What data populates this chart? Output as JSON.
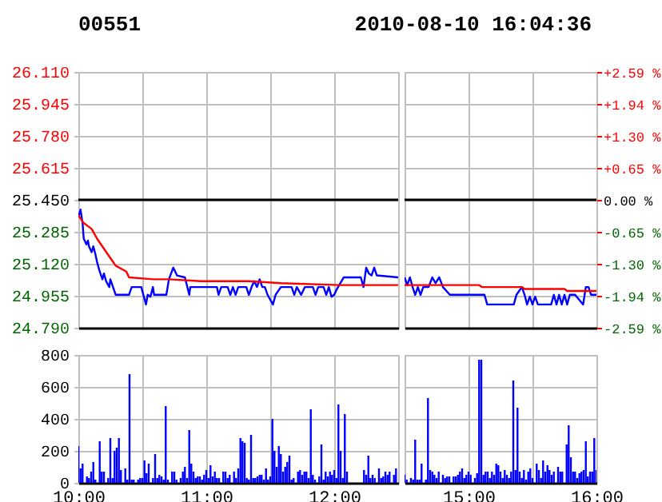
{
  "chart_data": [
    {
      "type": "line",
      "title": "00551",
      "xlim": [
        10,
        12.5
      ],
      "xticks": [
        {
          "value": 10,
          "label": null
        },
        {
          "value": 10.5,
          "label": null
        },
        {
          "value": 11,
          "label": null
        },
        {
          "value": 11.5,
          "label": null
        },
        {
          "value": 12,
          "label": null
        },
        {
          "value": 12.5,
          "label": null
        }
      ],
      "tick_labels": "y",
      "ylim": [
        24.79,
        26.11
      ],
      "yticks": [
        {
          "value": 24.79,
          "label": "24.790"
        },
        {
          "value": 24.955,
          "label": "24.955"
        },
        {
          "value": 25.12,
          "label": "25.120"
        },
        {
          "value": 25.285,
          "label": "25.285"
        },
        {
          "value": 25.45,
          "label": "25.450"
        },
        {
          "value": 25.615,
          "label": "25.615"
        },
        {
          "value": 25.78,
          "label": "25.780"
        },
        {
          "value": 25.945,
          "label": "25.945"
        },
        {
          "value": 26.11,
          "label": "26.110"
        }
      ],
      "grid": true,
      "ref_lines": [
        {
          "axis": "y",
          "value": 25.45,
          "color": "#000000"
        }
      ],
      "series": [
        {
          "color": "#0000ff",
          "x": [
            10,
            10.017,
            10.033,
            10.042,
            10.063,
            10.075,
            10.083,
            10.104,
            10.117,
            10.133,
            10.146,
            10.167,
            10.188,
            10.2,
            10.217,
            10.242,
            10.25,
            10.271,
            10.292,
            10.396,
            10.417,
            10.492,
            10.508,
            10.529,
            10.542,
            10.563,
            10.583,
            10.592,
            10.688,
            10.708,
            10.742,
            10.771,
            10.833,
            10.867,
            10.875,
            11.083,
            11.096,
            11.117,
            11.167,
            11.188,
            11.208,
            11.229,
            11.25,
            11.313,
            11.333,
            11.354,
            11.375,
            11.396,
            11.417,
            11.438,
            11.458,
            11.479,
            11.521,
            11.542,
            11.583,
            11.667,
            11.688,
            11.708,
            11.742,
            11.771,
            11.833,
            11.854,
            11.875,
            11.917,
            11.938,
            11.958,
            11.979,
            12,
            12.021,
            12.075,
            12.208,
            12.229,
            12.25,
            12.271,
            12.292,
            12.313,
            12.333,
            12.5
          ],
          "values": [
            25.36,
            25.4,
            25.33,
            25.25,
            25.22,
            25.24,
            25.21,
            25.18,
            25.21,
            25.17,
            25.13,
            25.08,
            25.04,
            25.07,
            25.03,
            25.0,
            25.04,
            25.0,
            24.96,
            24.96,
            25.0,
            25.0,
            24.96,
            24.91,
            24.96,
            24.95,
            25.0,
            24.96,
            24.96,
            25.04,
            25.1,
            25.06,
            25.05,
            24.96,
            25.0,
            25.0,
            24.96,
            25.0,
            25.0,
            24.96,
            25.0,
            24.96,
            25.0,
            25.0,
            24.96,
            25.0,
            25.03,
            25.0,
            25.04,
            25.0,
            25.0,
            24.96,
            24.91,
            24.96,
            25.0,
            25.0,
            24.96,
            25.0,
            24.96,
            25.0,
            25.0,
            24.96,
            25.0,
            25.0,
            24.96,
            25.0,
            24.95,
            24.96,
            24.99,
            25.05,
            25.05,
            25.0,
            25.1,
            25.07,
            25.06,
            25.1,
            25.06,
            25.05
          ]
        },
        {
          "color": "#ff0000",
          "x": [
            10,
            10.042,
            10.104,
            10.146,
            10.208,
            10.25,
            10.292,
            10.375,
            10.396,
            10.583,
            10.708,
            10.958,
            11.333,
            11.583,
            12.042,
            12.5
          ],
          "values": [
            25.37,
            25.33,
            25.3,
            25.25,
            25.19,
            25.15,
            25.11,
            25.08,
            25.05,
            25.04,
            25.04,
            25.03,
            25.03,
            25.02,
            25.01,
            25.01
          ]
        }
      ]
    },
    {
      "type": "line",
      "xlim": [
        14.5,
        16
      ],
      "xticks": [
        {
          "value": 14.5,
          "label": null
        },
        {
          "value": 15,
          "label": null
        },
        {
          "value": 15.5,
          "label": null
        },
        {
          "value": 16,
          "label": null
        }
      ],
      "tick_labels": false,
      "title": "2010-08-10 16:04:36",
      "ylim": [
        24.79,
        26.11
      ],
      "yticks": [
        {
          "value": 24.79,
          "label": null
        },
        {
          "value": 24.955,
          "label": null
        },
        {
          "value": 25.12,
          "label": null
        },
        {
          "value": 25.285,
          "label": null
        },
        {
          "value": 25.45,
          "label": null
        },
        {
          "value": 25.615,
          "label": null
        },
        {
          "value": 25.78,
          "label": null
        },
        {
          "value": 25.945,
          "label": null
        },
        {
          "value": 26.11,
          "label": null
        }
      ],
      "y2lim": [
        -2.59,
        2.59
      ],
      "y2ticks": [
        {
          "value": -2.59,
          "label": "-2.59 %"
        },
        {
          "value": -1.94,
          "label": "-1.94 %"
        },
        {
          "value": -1.3,
          "label": "-1.30 %"
        },
        {
          "value": -0.65,
          "label": "-0.65 %"
        },
        {
          "value": 0,
          "label": "0.00 %"
        },
        {
          "value": 0.65,
          "label": "+0.65 %"
        },
        {
          "value": 1.3,
          "label": "+1.30 %"
        },
        {
          "value": 1.94,
          "label": "+1.94 %"
        },
        {
          "value": 2.59,
          "label": "+2.59 %"
        }
      ],
      "grid": true,
      "ref_lines": [
        {
          "axis": "y",
          "value": 25.45,
          "color": "#000000"
        }
      ],
      "series": [
        {
          "color": "#0000ff",
          "x": [
            14.5,
            14.521,
            14.542,
            14.563,
            14.583,
            14.604,
            14.625,
            14.646,
            14.688,
            14.717,
            14.742,
            14.771,
            14.8,
            14.854,
            15.125,
            15.146,
            15.354,
            15.375,
            15.417,
            15.438,
            15.458,
            15.479,
            15.5,
            15.521,
            15.542,
            15.646,
            15.667,
            15.688,
            15.708,
            15.729,
            15.75,
            15.771,
            15.792,
            15.833,
            15.896,
            15.917,
            15.938,
            15.958,
            16
          ],
          "values": [
            25.05,
            25.01,
            25.05,
            25.0,
            24.96,
            25.0,
            24.96,
            25.0,
            25.0,
            25.05,
            25.02,
            25.05,
            25.0,
            24.96,
            24.96,
            24.91,
            24.91,
            24.96,
            25.0,
            24.96,
            24.91,
            24.95,
            24.91,
            24.95,
            24.91,
            24.91,
            24.96,
            24.91,
            24.96,
            24.91,
            24.96,
            24.91,
            24.96,
            24.96,
            24.91,
            25.0,
            25.0,
            24.96,
            24.96
          ]
        },
        {
          "color": "#ff0000",
          "x": [
            14.5,
            15.083,
            15.104,
            15.417,
            15.438,
            15.75,
            15.771,
            16
          ],
          "values": [
            25.01,
            25.01,
            25.0,
            25.0,
            24.99,
            24.99,
            24.98,
            24.98
          ]
        }
      ]
    },
    {
      "type": "bar",
      "color": "#0000ff",
      "xlim": [
        10,
        12.5
      ],
      "xticks": [
        {
          "value": 10,
          "label": "10:00"
        },
        {
          "value": 10.5,
          "label": null
        },
        {
          "value": 11,
          "label": "11:00"
        },
        {
          "value": 11.5,
          "label": null
        },
        {
          "value": 12,
          "label": "12:00"
        },
        {
          "value": 12.5,
          "label": null
        }
      ],
      "ylim": [
        0,
        800
      ],
      "yticks": [
        0,
        200,
        400,
        600,
        800
      ],
      "grid": true,
      "x": [
        10,
        10.017,
        10.033,
        10.067,
        10.083,
        10.1,
        10.117,
        10.133,
        10.167,
        10.183,
        10.2,
        10.233,
        10.25,
        10.267,
        10.283,
        10.3,
        10.317,
        10.333,
        10.367,
        10.383,
        10.4,
        10.417,
        10.433,
        10.467,
        10.483,
        10.5,
        10.517,
        10.533,
        10.55,
        10.583,
        10.6,
        10.617,
        10.633,
        10.65,
        10.667,
        10.683,
        10.7,
        10.733,
        10.75,
        10.767,
        10.8,
        10.817,
        10.833,
        10.85,
        10.867,
        10.883,
        10.9,
        10.917,
        10.933,
        10.95,
        10.967,
        10.983,
        11,
        11.017,
        11.033,
        11.05,
        11.067,
        11.083,
        11.1,
        11.133,
        11.15,
        11.167,
        11.183,
        11.217,
        11.233,
        11.25,
        11.267,
        11.283,
        11.3,
        11.317,
        11.333,
        11.35,
        11.367,
        11.383,
        11.4,
        11.417,
        11.433,
        11.45,
        11.467,
        11.483,
        11.5,
        11.517,
        11.533,
        11.55,
        11.567,
        11.583,
        11.6,
        11.617,
        11.633,
        11.65,
        11.667,
        11.683,
        11.717,
        11.733,
        11.75,
        11.767,
        11.783,
        11.8,
        11.817,
        11.833,
        11.85,
        11.883,
        11.9,
        11.917,
        11.933,
        11.95,
        11.967,
        11.983,
        12,
        12.017,
        12.033,
        12.05,
        12.067,
        12.083,
        12.1,
        12.233,
        12.25,
        12.267,
        12.283,
        12.3,
        12.317,
        12.35,
        12.367,
        12.383,
        12.4,
        12.417,
        12.433,
        12.467,
        12.483
      ],
      "values": [
        230,
        90,
        120,
        40,
        30,
        70,
        130,
        20,
        260,
        70,
        70,
        30,
        280,
        30,
        200,
        220,
        280,
        80,
        90,
        20,
        680,
        20,
        20,
        20,
        30,
        30,
        140,
        60,
        120,
        30,
        180,
        30,
        50,
        40,
        20,
        480,
        20,
        70,
        70,
        20,
        30,
        70,
        100,
        30,
        330,
        120,
        70,
        30,
        40,
        40,
        20,
        50,
        80,
        30,
        110,
        40,
        70,
        30,
        30,
        70,
        70,
        30,
        50,
        70,
        30,
        90,
        280,
        260,
        250,
        30,
        20,
        300,
        30,
        30,
        40,
        50,
        50,
        20,
        90,
        20,
        40,
        400,
        200,
        100,
        230,
        180,
        70,
        100,
        130,
        170,
        20,
        30,
        70,
        80,
        50,
        70,
        70,
        30,
        460,
        50,
        20,
        40,
        240,
        20,
        70,
        40,
        70,
        50,
        80,
        30,
        490,
        200,
        30,
        430,
        70,
        80,
        50,
        170,
        30,
        50,
        30,
        90,
        30,
        40,
        70,
        50,
        70,
        50,
        90
      ]
    },
    {
      "type": "bar",
      "color": "#0000ff",
      "xlim": [
        14.5,
        16
      ],
      "xticks": [
        {
          "value": 14.5,
          "label": null
        },
        {
          "value": 15,
          "label": "15:00"
        },
        {
          "value": 15.5,
          "label": null
        },
        {
          "value": 16,
          "label": "16:00"
        }
      ],
      "tick_labels": "x",
      "ylim": [
        0,
        800
      ],
      "yticks": [
        0,
        200,
        400,
        600,
        800
      ],
      "grid": true,
      "x": [
        14.5,
        14.517,
        14.55,
        14.567,
        14.583,
        14.6,
        14.617,
        14.633,
        14.667,
        14.683,
        14.7,
        14.717,
        14.733,
        14.75,
        14.767,
        14.8,
        14.817,
        14.833,
        14.85,
        14.883,
        14.9,
        14.917,
        14.933,
        14.95,
        14.967,
        14.983,
        15,
        15.017,
        15.05,
        15.067,
        15.083,
        15.1,
        15.117,
        15.133,
        15.15,
        15.167,
        15.183,
        15.2,
        15.217,
        15.233,
        15.25,
        15.267,
        15.283,
        15.3,
        15.317,
        15.333,
        15.35,
        15.367,
        15.383,
        15.4,
        15.417,
        15.433,
        15.45,
        15.467,
        15.483,
        15.5,
        15.533,
        15.55,
        15.567,
        15.583,
        15.6,
        15.617,
        15.633,
        15.65,
        15.667,
        15.7,
        15.717,
        15.733,
        15.767,
        15.783,
        15.8,
        15.817,
        15.833,
        15.85,
        15.867,
        15.883,
        15.9,
        15.917,
        15.933,
        15.95,
        15.967,
        15.983,
        16
      ],
      "values": [
        50,
        20,
        30,
        20,
        270,
        20,
        20,
        120,
        20,
        530,
        80,
        70,
        50,
        30,
        70,
        50,
        30,
        40,
        40,
        40,
        40,
        50,
        70,
        90,
        30,
        50,
        70,
        50,
        30,
        60,
        770,
        770,
        50,
        70,
        70,
        30,
        70,
        50,
        120,
        110,
        70,
        30,
        80,
        50,
        30,
        70,
        640,
        80,
        470,
        70,
        30,
        80,
        20,
        70,
        90,
        30,
        120,
        80,
        30,
        140,
        70,
        110,
        80,
        50,
        70,
        100,
        70,
        70,
        240,
        360,
        160,
        70,
        70,
        30,
        60,
        70,
        80,
        260,
        40,
        70,
        70,
        280,
        80
      ]
    }
  ]
}
